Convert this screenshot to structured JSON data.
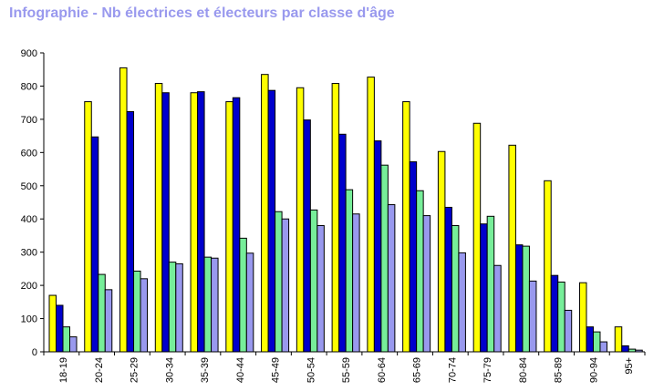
{
  "chart_data": {
    "type": "bar",
    "title": "Infographie - Nb électrices et électeurs par classe d'âge",
    "xlabel": "",
    "ylabel": "",
    "ylim": [
      0,
      900
    ],
    "yticks": [
      0,
      100,
      200,
      300,
      400,
      500,
      600,
      700,
      800,
      900
    ],
    "grid": false,
    "legend": "none",
    "categories": [
      "18-19",
      "20-24",
      "25-29",
      "30-34",
      "35-39",
      "40-44",
      "45-49",
      "50-54",
      "55-59",
      "60-64",
      "65-69",
      "70-74",
      "75-79",
      "80-84",
      "85-89",
      "90-94",
      "95+"
    ],
    "series": [
      {
        "color": "#ffff00",
        "values": [
          170,
          753,
          855,
          808,
          780,
          753,
          835,
          795,
          808,
          827,
          753,
          603,
          688,
          622,
          515,
          208,
          75
        ]
      },
      {
        "color": "#0000cc",
        "values": [
          140,
          647,
          723,
          780,
          783,
          765,
          787,
          698,
          655,
          635,
          572,
          435,
          385,
          322,
          230,
          75,
          18
        ]
      },
      {
        "color": "#77ee99",
        "values": [
          75,
          233,
          243,
          270,
          285,
          342,
          422,
          427,
          488,
          562,
          485,
          380,
          408,
          318,
          210,
          60,
          8
        ]
      },
      {
        "color": "#9999ee",
        "values": [
          45,
          187,
          220,
          265,
          282,
          297,
          400,
          380,
          415,
          443,
          410,
          298,
          260,
          213,
          125,
          30,
          5
        ]
      }
    ]
  }
}
